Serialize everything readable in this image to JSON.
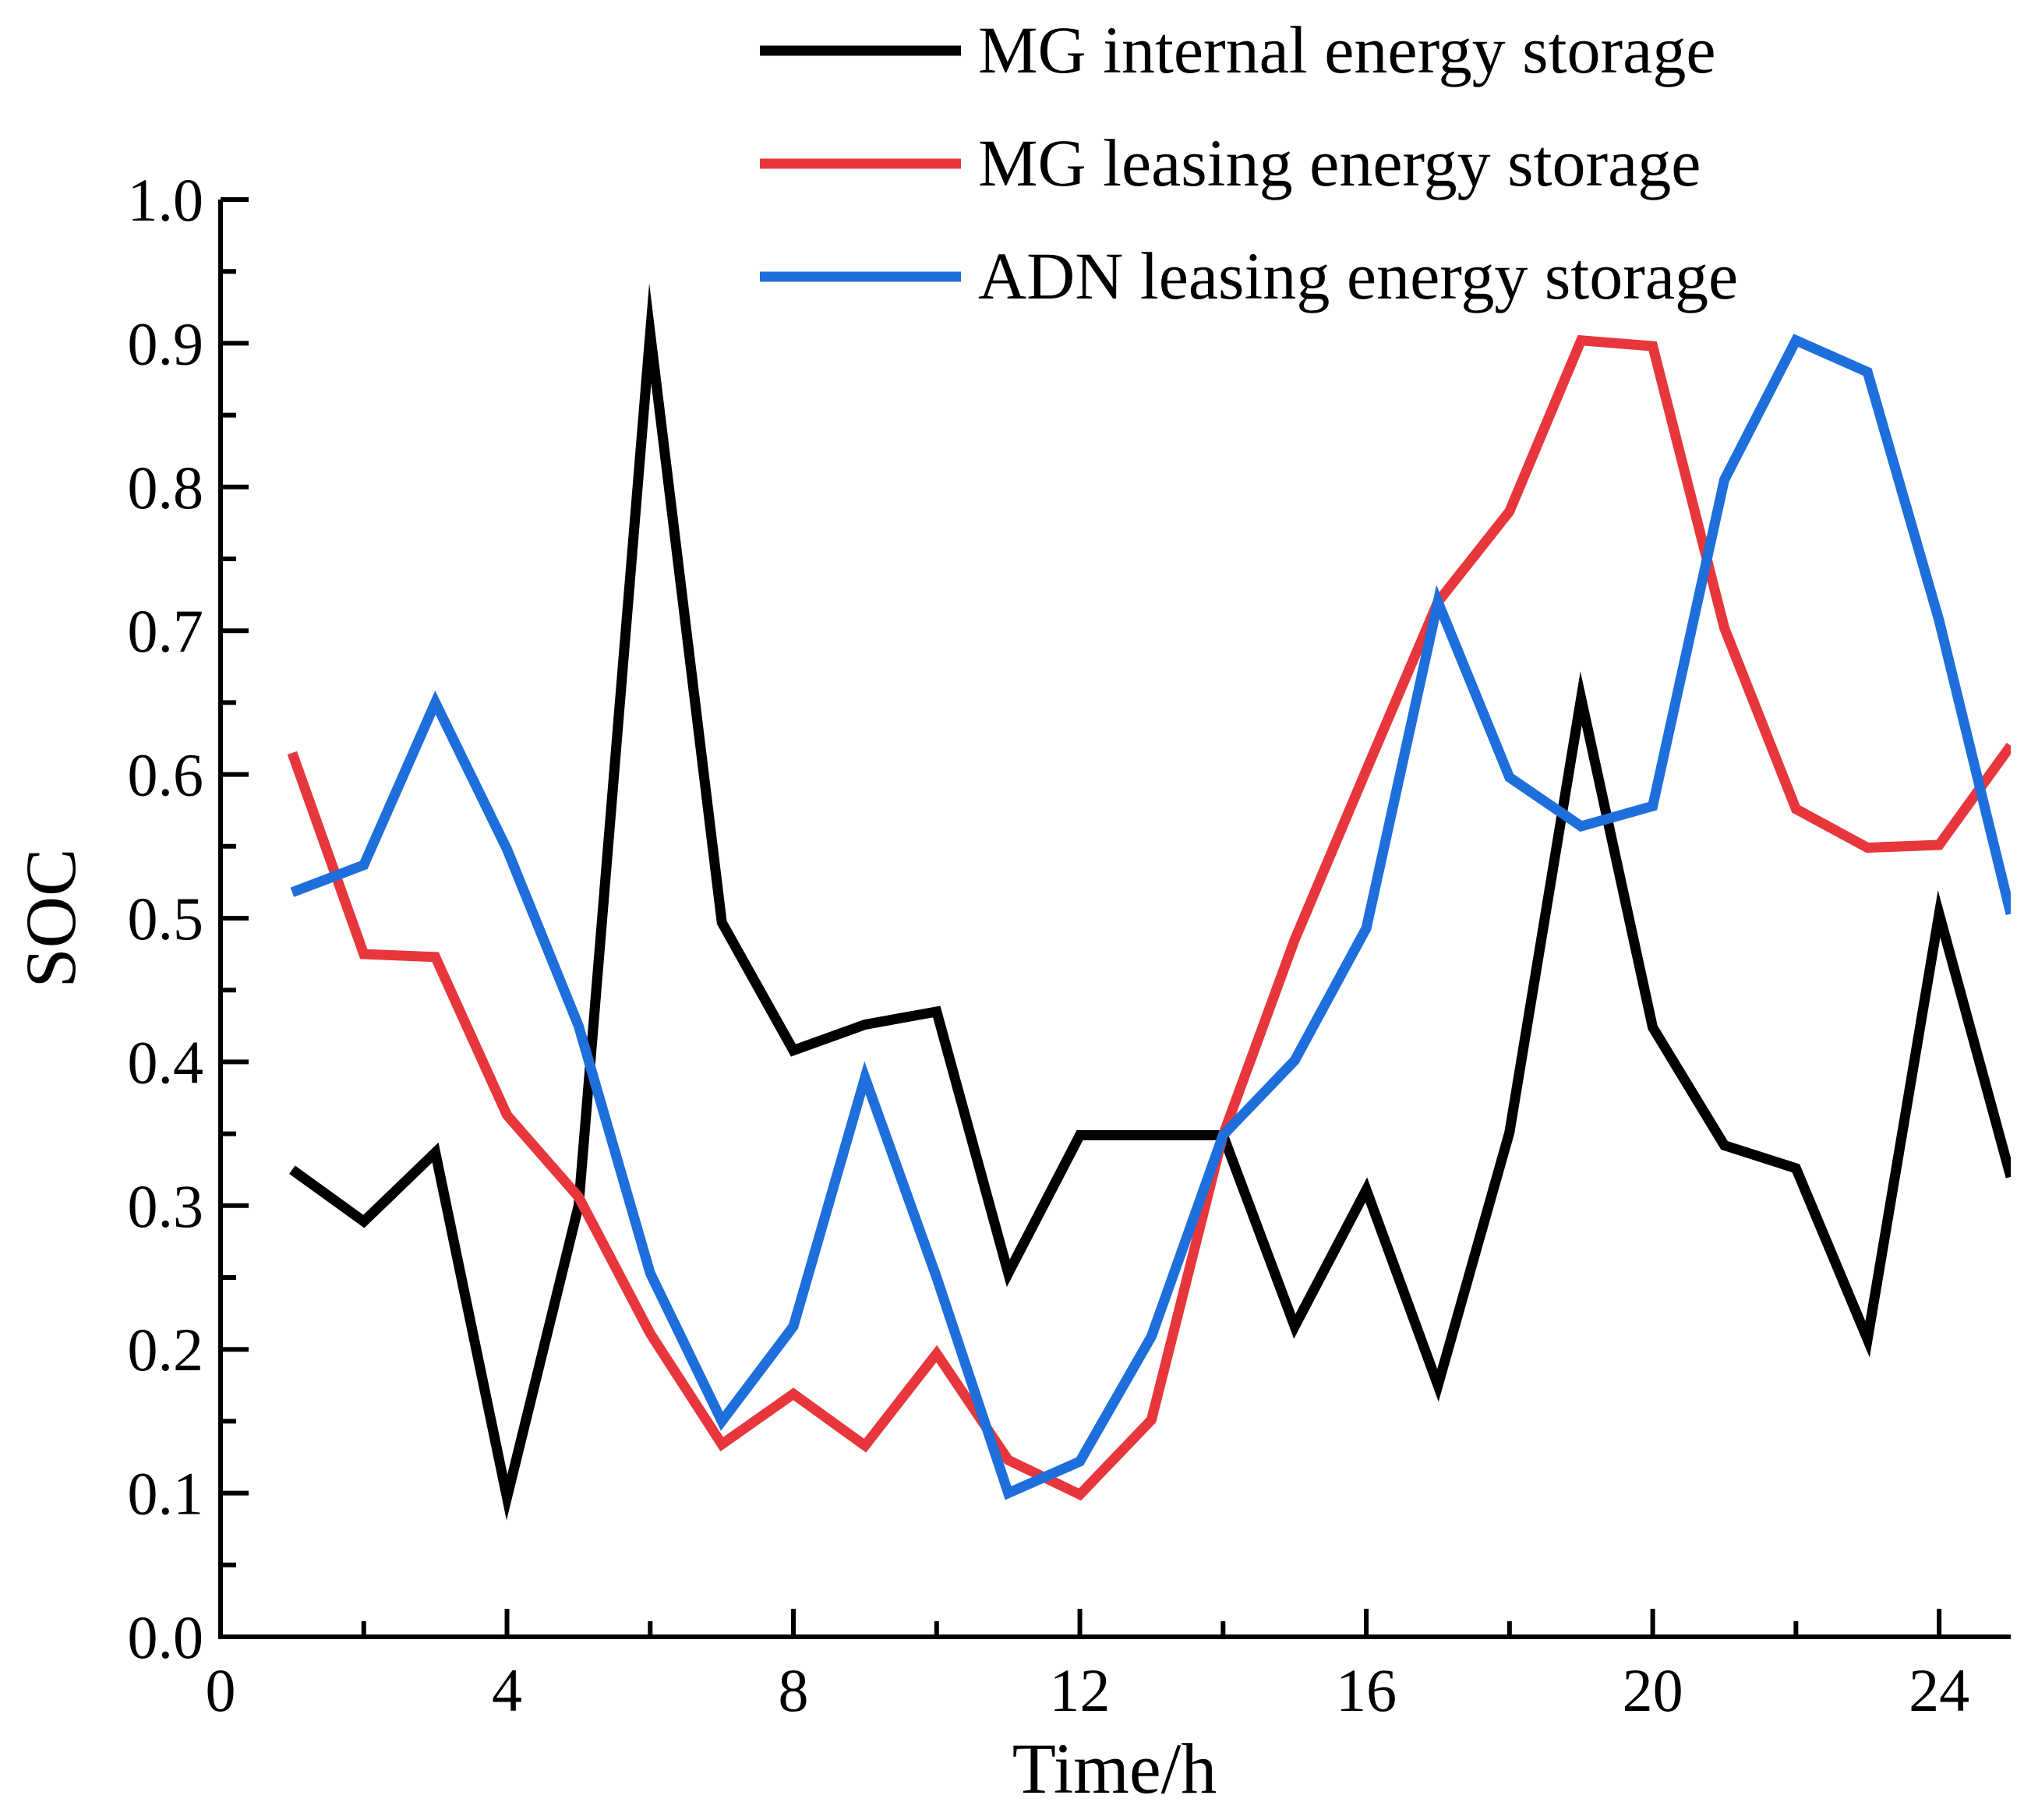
{
  "chart_data": {
    "type": "line",
    "title": "",
    "xlabel": "Time/h",
    "ylabel": "SOC",
    "xlim": [
      0,
      25
    ],
    "ylim": [
      0.0,
      1.0
    ],
    "x_ticks": [
      0,
      4,
      8,
      12,
      16,
      20,
      24
    ],
    "x_tick_labels": [
      "0",
      "4",
      "8",
      "12",
      "16",
      "20",
      "24"
    ],
    "y_ticks": [
      0.0,
      0.1,
      0.2,
      0.3,
      0.4,
      0.5,
      0.6,
      0.7,
      0.8,
      0.9,
      1.0
    ],
    "y_tick_labels": [
      "0.0",
      "0.1",
      "0.2",
      "0.3",
      "0.4",
      "0.5",
      "0.6",
      "0.7",
      "0.8",
      "0.9",
      "1.0"
    ],
    "grid": false,
    "legend_position": "top-right",
    "x": [
      1,
      2,
      3,
      4,
      5,
      6,
      7,
      8,
      9,
      10,
      11,
      12,
      13,
      14,
      15,
      16,
      17,
      18,
      19,
      20,
      21,
      22,
      23,
      24,
      25
    ],
    "series": [
      {
        "name": "MG internal energy storage",
        "color": "#000000",
        "values": [
          0.325,
          0.289,
          0.337,
          0.097,
          0.3,
          0.907,
          0.497,
          0.408,
          0.426,
          0.435,
          0.253,
          0.349,
          0.349,
          0.349,
          0.216,
          0.311,
          0.175,
          0.351,
          0.653,
          0.424,
          0.342,
          0.326,
          0.207,
          0.503,
          0.32
        ]
      },
      {
        "name": "MG leasing energy storage",
        "color": "#e8373c",
        "values": [
          0.615,
          0.475,
          0.473,
          0.363,
          0.306,
          0.211,
          0.134,
          0.169,
          0.133,
          0.197,
          0.123,
          0.099,
          0.151,
          0.349,
          0.485,
          0.603,
          0.72,
          0.783,
          0.902,
          0.898,
          0.702,
          0.576,
          0.549,
          0.551,
          0.62
        ]
      },
      {
        "name": "ADN leasing energy storage",
        "color": "#1e6fdc",
        "values": [
          0.518,
          0.537,
          0.65,
          0.548,
          0.425,
          0.253,
          0.15,
          0.216,
          0.389,
          0.25,
          0.1,
          0.122,
          0.209,
          0.349,
          0.401,
          0.493,
          0.72,
          0.598,
          0.564,
          0.578,
          0.805,
          0.902,
          0.88,
          0.707,
          0.503
        ]
      }
    ]
  }
}
